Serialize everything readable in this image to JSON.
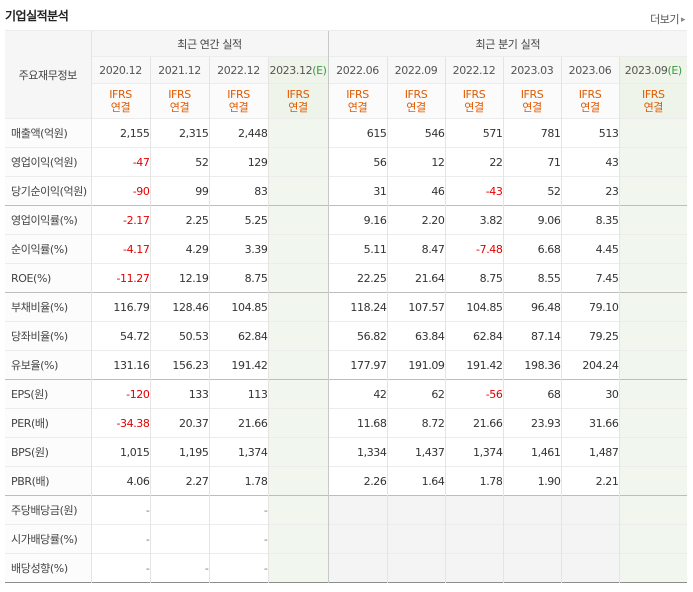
{
  "header": {
    "title": "기업실적분석",
    "more_label": "더보기"
  },
  "table": {
    "row_header_label": "주요재무정보",
    "annual_group": "최근 연간 실적",
    "quarter_group": "최근 분기 실적",
    "annual_periods": [
      {
        "date": "2020.12",
        "est": "",
        "std1": "IFRS",
        "std2": "연결"
      },
      {
        "date": "2021.12",
        "est": "",
        "std1": "IFRS",
        "std2": "연결"
      },
      {
        "date": "2022.12",
        "est": "",
        "std1": "IFRS",
        "std2": "연결"
      },
      {
        "date": "2023.12",
        "est": "(E)",
        "std1": "IFRS",
        "std2": "연결"
      }
    ],
    "quarter_periods": [
      {
        "date": "2022.06",
        "est": "",
        "std1": "IFRS",
        "std2": "연결"
      },
      {
        "date": "2022.09",
        "est": "",
        "std1": "IFRS",
        "std2": "연결"
      },
      {
        "date": "2022.12",
        "est": "",
        "std1": "IFRS",
        "std2": "연결"
      },
      {
        "date": "2023.03",
        "est": "",
        "std1": "IFRS",
        "std2": "연결"
      },
      {
        "date": "2023.06",
        "est": "",
        "std1": "IFRS",
        "std2": "연결"
      },
      {
        "date": "2023.09",
        "est": "(E)",
        "std1": "IFRS",
        "std2": "연결"
      }
    ],
    "rows": [
      {
        "label": "매출액(억원)",
        "annual": [
          "2,155",
          "2,315",
          "2,448",
          ""
        ],
        "quarter": [
          "615",
          "546",
          "571",
          "781",
          "513",
          ""
        ]
      },
      {
        "label": "영업이익(억원)",
        "annual": [
          "-47",
          "52",
          "129",
          ""
        ],
        "quarter": [
          "56",
          "12",
          "22",
          "71",
          "43",
          ""
        ]
      },
      {
        "label": "당기순이익(억원)",
        "annual": [
          "-90",
          "99",
          "83",
          ""
        ],
        "quarter": [
          "31",
          "46",
          "-43",
          "52",
          "23",
          ""
        ]
      },
      {
        "label": "영업이익률(%)",
        "annual": [
          "-2.17",
          "2.25",
          "5.25",
          ""
        ],
        "quarter": [
          "9.16",
          "2.20",
          "3.82",
          "9.06",
          "8.35",
          ""
        ],
        "sep": true
      },
      {
        "label": "순이익률(%)",
        "annual": [
          "-4.17",
          "4.29",
          "3.39",
          ""
        ],
        "quarter": [
          "5.11",
          "8.47",
          "-7.48",
          "6.68",
          "4.45",
          ""
        ]
      },
      {
        "label": "ROE(%)",
        "annual": [
          "-11.27",
          "12.19",
          "8.75",
          ""
        ],
        "quarter": [
          "22.25",
          "21.64",
          "8.75",
          "8.55",
          "7.45",
          ""
        ]
      },
      {
        "label": "부채비율(%)",
        "annual": [
          "116.79",
          "128.46",
          "104.85",
          ""
        ],
        "quarter": [
          "118.24",
          "107.57",
          "104.85",
          "96.48",
          "79.10",
          ""
        ],
        "sep": true
      },
      {
        "label": "당좌비율(%)",
        "annual": [
          "54.72",
          "50.53",
          "62.84",
          ""
        ],
        "quarter": [
          "56.82",
          "63.84",
          "62.84",
          "87.14",
          "79.25",
          ""
        ]
      },
      {
        "label": "유보율(%)",
        "annual": [
          "131.16",
          "156.23",
          "191.42",
          ""
        ],
        "quarter": [
          "177.97",
          "191.09",
          "191.42",
          "198.36",
          "204.24",
          ""
        ]
      },
      {
        "label": "EPS(원)",
        "annual": [
          "-120",
          "133",
          "113",
          ""
        ],
        "quarter": [
          "42",
          "62",
          "-56",
          "68",
          "30",
          ""
        ],
        "sep": true
      },
      {
        "label": "PER(배)",
        "annual": [
          "-34.38",
          "20.37",
          "21.66",
          ""
        ],
        "quarter": [
          "11.68",
          "8.72",
          "21.66",
          "23.93",
          "31.66",
          ""
        ]
      },
      {
        "label": "BPS(원)",
        "annual": [
          "1,015",
          "1,195",
          "1,374",
          ""
        ],
        "quarter": [
          "1,334",
          "1,437",
          "1,374",
          "1,461",
          "1,487",
          ""
        ]
      },
      {
        "label": "PBR(배)",
        "annual": [
          "4.06",
          "2.27",
          "1.78",
          ""
        ],
        "quarter": [
          "2.26",
          "1.64",
          "1.78",
          "1.90",
          "2.21",
          ""
        ]
      },
      {
        "label": "주당배당금(원)",
        "annual": [
          "-",
          "",
          "-",
          ""
        ],
        "quarter": [
          "",
          "",
          "",
          "",
          "",
          ""
        ],
        "sep": true,
        "quarter_blank": true
      },
      {
        "label": "시가배당률(%)",
        "annual": [
          "-",
          "",
          "-",
          ""
        ],
        "quarter": [
          "",
          "",
          "",
          "",
          "",
          ""
        ],
        "quarter_blank": true
      },
      {
        "label": "배당성향(%)",
        "annual": [
          "-",
          "-",
          "-",
          ""
        ],
        "quarter": [
          "",
          "",
          "",
          "",
          "",
          ""
        ],
        "quarter_blank": true
      }
    ]
  }
}
